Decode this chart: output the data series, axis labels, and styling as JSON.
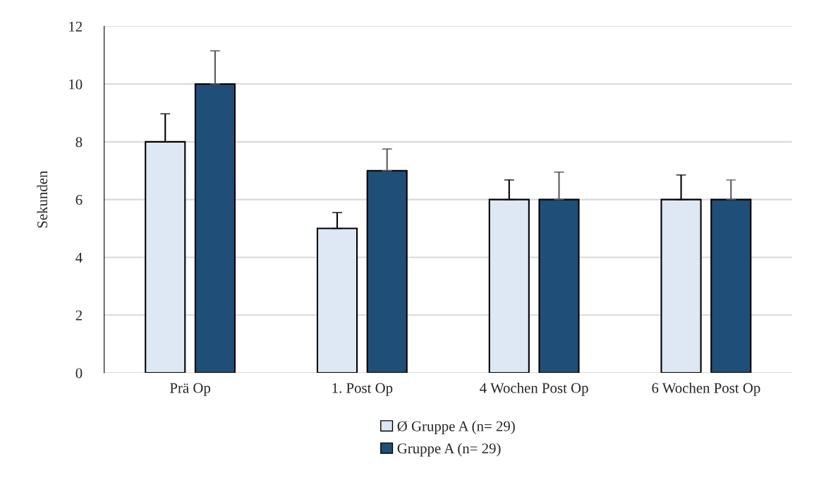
{
  "chart_data": {
    "type": "bar",
    "ylabel": "Sekunden",
    "categories": [
      "Prä Op",
      "1. Post Op",
      "4 Wochen Post Op",
      "6 Wochen Post Op"
    ],
    "series": [
      {
        "name": "Ø Gruppe A (n= 29)",
        "color": "#dee8f4",
        "values": [
          8,
          5,
          6,
          6
        ],
        "errors": [
          [
            8,
            8.97
          ],
          [
            5,
            5.55
          ],
          [
            6,
            6.68
          ],
          [
            6,
            6.85
          ]
        ]
      },
      {
        "name": "Gruppe A (n= 29)",
        "color": "#1f4e79",
        "values": [
          10,
          7,
          6,
          6
        ],
        "errors": [
          [
            10,
            11.15
          ],
          [
            7,
            7.75
          ],
          [
            6,
            6.95
          ],
          [
            6,
            6.68
          ]
        ]
      }
    ],
    "ylim": [
      0,
      12
    ],
    "yticks": [
      0,
      2,
      4,
      6,
      8,
      10,
      12
    ],
    "grid": "y",
    "legend": "bottom"
  }
}
